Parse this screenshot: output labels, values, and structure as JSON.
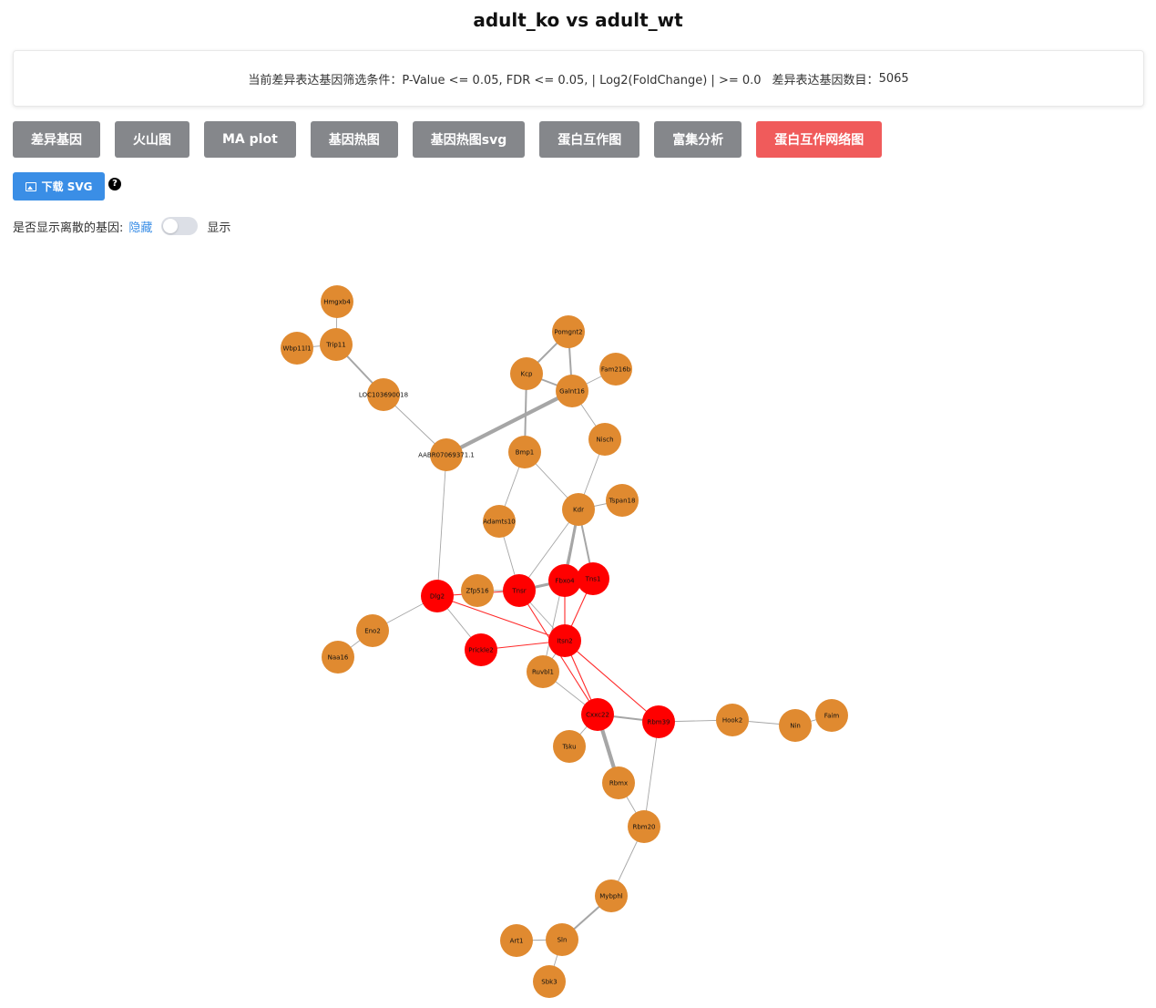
{
  "page_title": "adult_ko vs adult_wt",
  "filter": {
    "text": "当前差异表达基因筛选条件：P-Value <= 0.05, FDR <= 0.05, | Log2(FoldChange) | >= 0.0",
    "count_label": "差异表达基因数目：",
    "count_value": "5065"
  },
  "tabs": [
    {
      "label": "差异基因",
      "active": false
    },
    {
      "label": "火山图",
      "active": false
    },
    {
      "label": "MA plot",
      "active": false
    },
    {
      "label": "基因热图",
      "active": false
    },
    {
      "label": "基因热图svg",
      "active": false
    },
    {
      "label": "蛋白互作图",
      "active": false
    },
    {
      "label": "富集分析",
      "active": false
    },
    {
      "label": "蛋白互作网络图",
      "active": true
    }
  ],
  "download_label": "下载 SVG",
  "help_glyph": "?",
  "isolated_toggle": {
    "label": "是否显示离散的基因:",
    "off_label": "隐藏",
    "on_label": "显示",
    "value": false
  },
  "colors": {
    "up_node": "#ff0000",
    "normal_node": "#e08a30",
    "gray_edge": "#a6a6a6",
    "red_edge": "#ff2a2a",
    "active_tab": "#f05b5b",
    "tab": "#85878b",
    "download": "#3a8ee6"
  },
  "network": {
    "nodes": [
      {
        "id": "Hmgxb4",
        "label": "Hmgxb4",
        "group": "normal"
      },
      {
        "id": "Trip11",
        "label": "Trip11",
        "group": "normal"
      },
      {
        "id": "Wbp11l1",
        "label": "Wbp11l1",
        "group": "normal"
      },
      {
        "id": "LOC103690018",
        "label": "LOC103690018",
        "group": "normal"
      },
      {
        "id": "AABR07069371.1",
        "label": "AABR07069371.1",
        "group": "normal"
      },
      {
        "id": "Pomgnt2",
        "label": "Pomgnt2",
        "group": "normal"
      },
      {
        "id": "Kcp",
        "label": "Kcp",
        "group": "normal"
      },
      {
        "id": "Fam216b",
        "label": "Fam216b",
        "group": "normal"
      },
      {
        "id": "Galnt16",
        "label": "Galnt16",
        "group": "normal"
      },
      {
        "id": "Nisch",
        "label": "Nisch",
        "group": "normal"
      },
      {
        "id": "Bmp1",
        "label": "Bmp1",
        "group": "normal"
      },
      {
        "id": "Tspan18",
        "label": "Tspan18",
        "group": "normal"
      },
      {
        "id": "Kdr",
        "label": "Kdr",
        "group": "normal"
      },
      {
        "id": "Adamts10",
        "label": "Adamts10",
        "group": "normal"
      },
      {
        "id": "Dlg2",
        "label": "Dlg2",
        "group": "up"
      },
      {
        "id": "Zfp516",
        "label": "Zfp516",
        "group": "normal"
      },
      {
        "id": "Tnsr",
        "label": "Tnsr",
        "group": "up"
      },
      {
        "id": "Fbxo4",
        "label": "Fbxo4",
        "group": "up"
      },
      {
        "id": "Tns1",
        "label": "Tns1",
        "group": "up"
      },
      {
        "id": "Eno2",
        "label": "Eno2",
        "group": "normal"
      },
      {
        "id": "Naa16",
        "label": "Naa16",
        "group": "normal"
      },
      {
        "id": "Prickle2",
        "label": "Prickle2",
        "group": "up"
      },
      {
        "id": "Itsn2",
        "label": "Itsn2",
        "group": "up"
      },
      {
        "id": "Ruvbl1",
        "label": "Ruvbl1",
        "group": "normal"
      },
      {
        "id": "Cxxc22",
        "label": "Cxxc22",
        "group": "up"
      },
      {
        "id": "Rbm39",
        "label": "Rbm39",
        "group": "up"
      },
      {
        "id": "Hook2",
        "label": "Hook2",
        "group": "normal"
      },
      {
        "id": "Nin",
        "label": "Nin",
        "group": "normal"
      },
      {
        "id": "Faim",
        "label": "Faim",
        "group": "normal"
      },
      {
        "id": "Tsku",
        "label": "Tsku",
        "group": "normal"
      },
      {
        "id": "Rbmx",
        "label": "Rbmx",
        "group": "normal"
      },
      {
        "id": "Rbm20",
        "label": "Rbm20",
        "group": "normal"
      },
      {
        "id": "Mybphl",
        "label": "Mybphl",
        "group": "normal"
      },
      {
        "id": "Art1",
        "label": "Art1",
        "group": "normal"
      },
      {
        "id": "Sln",
        "label": "Sln",
        "group": "normal"
      },
      {
        "id": "Sbk3",
        "label": "Sbk3",
        "group": "normal"
      }
    ],
    "edges": [
      {
        "source": "Hmgxb4",
        "target": "Trip11",
        "type": "gray",
        "strength": 1
      },
      {
        "source": "Trip11",
        "target": "Wbp11l1",
        "type": "gray",
        "strength": 1
      },
      {
        "source": "Trip11",
        "target": "LOC103690018",
        "type": "gray",
        "strength": 2
      },
      {
        "source": "LOC103690018",
        "target": "AABR07069371.1",
        "type": "gray",
        "strength": 1
      },
      {
        "source": "AABR07069371.1",
        "target": "Galnt16",
        "type": "gray",
        "strength": 4
      },
      {
        "source": "AABR07069371.1",
        "target": "Dlg2",
        "type": "gray",
        "strength": 1
      },
      {
        "source": "Pomgnt2",
        "target": "Kcp",
        "type": "gray",
        "strength": 2
      },
      {
        "source": "Pomgnt2",
        "target": "Galnt16",
        "type": "gray",
        "strength": 2
      },
      {
        "source": "Kcp",
        "target": "Galnt16",
        "type": "gray",
        "strength": 2
      },
      {
        "source": "Kcp",
        "target": "Bmp1",
        "type": "gray",
        "strength": 2
      },
      {
        "source": "Fam216b",
        "target": "Galnt16",
        "type": "gray",
        "strength": 1
      },
      {
        "source": "Galnt16",
        "target": "Nisch",
        "type": "gray",
        "strength": 1
      },
      {
        "source": "Nisch",
        "target": "Kdr",
        "type": "gray",
        "strength": 1
      },
      {
        "source": "Bmp1",
        "target": "Adamts10",
        "type": "gray",
        "strength": 1
      },
      {
        "source": "Bmp1",
        "target": "Kdr",
        "type": "gray",
        "strength": 1
      },
      {
        "source": "Kdr",
        "target": "Tspan18",
        "type": "gray",
        "strength": 1
      },
      {
        "source": "Kdr",
        "target": "Fbxo4",
        "type": "gray",
        "strength": 3
      },
      {
        "source": "Kdr",
        "target": "Tns1",
        "type": "gray",
        "strength": 2
      },
      {
        "source": "Kdr",
        "target": "Tnsr",
        "type": "gray",
        "strength": 1
      },
      {
        "source": "Kdr",
        "target": "Ruvbl1",
        "type": "gray",
        "strength": 1
      },
      {
        "source": "Adamts10",
        "target": "Tnsr",
        "type": "gray",
        "strength": 1
      },
      {
        "source": "Zfp516",
        "target": "Tnsr",
        "type": "gray",
        "strength": 1
      },
      {
        "source": "Tnsr",
        "target": "Fbxo4",
        "type": "gray",
        "strength": 3
      },
      {
        "source": "Tnsr",
        "target": "Itsn2",
        "type": "gray",
        "strength": 1
      },
      {
        "source": "Dlg2",
        "target": "Eno2",
        "type": "gray",
        "strength": 1
      },
      {
        "source": "Eno2",
        "target": "Naa16",
        "type": "gray",
        "strength": 1
      },
      {
        "source": "Dlg2",
        "target": "Prickle2",
        "type": "gray",
        "strength": 1
      },
      {
        "source": "Dlg2",
        "target": "Itsn2",
        "type": "red",
        "strength": 1
      },
      {
        "source": "Dlg2",
        "target": "Tnsr",
        "type": "red",
        "strength": 1
      },
      {
        "source": "Tnsr",
        "target": "Cxxc22",
        "type": "red",
        "strength": 1
      },
      {
        "source": "Fbxo4",
        "target": "Itsn2",
        "type": "red",
        "strength": 1
      },
      {
        "source": "Tns1",
        "target": "Itsn2",
        "type": "red",
        "strength": 1
      },
      {
        "source": "Prickle2",
        "target": "Itsn2",
        "type": "red",
        "strength": 1
      },
      {
        "source": "Itsn2",
        "target": "Cxxc22",
        "type": "red",
        "strength": 1
      },
      {
        "source": "Itsn2",
        "target": "Rbm39",
        "type": "red",
        "strength": 1
      },
      {
        "source": "Itsn2",
        "target": "Ruvbl1",
        "type": "gray",
        "strength": 1
      },
      {
        "source": "Ruvbl1",
        "target": "Cxxc22",
        "type": "gray",
        "strength": 1
      },
      {
        "source": "Cxxc22",
        "target": "Rbm39",
        "type": "gray",
        "strength": 2
      },
      {
        "source": "Cxxc22",
        "target": "Tsku",
        "type": "gray",
        "strength": 1
      },
      {
        "source": "Cxxc22",
        "target": "Rbmx",
        "type": "gray",
        "strength": 4
      },
      {
        "source": "Rbm39",
        "target": "Hook2",
        "type": "gray",
        "strength": 1
      },
      {
        "source": "Rbm39",
        "target": "Rbm20",
        "type": "gray",
        "strength": 1
      },
      {
        "source": "Hook2",
        "target": "Nin",
        "type": "gray",
        "strength": 1
      },
      {
        "source": "Nin",
        "target": "Faim",
        "type": "gray",
        "strength": 1
      },
      {
        "source": "Rbmx",
        "target": "Rbm20",
        "type": "gray",
        "strength": 1
      },
      {
        "source": "Rbm20",
        "target": "Mybphl",
        "type": "gray",
        "strength": 1
      },
      {
        "source": "Mybphl",
        "target": "Sln",
        "type": "gray",
        "strength": 2
      },
      {
        "source": "Art1",
        "target": "Sln",
        "type": "gray",
        "strength": 1
      },
      {
        "source": "Sln",
        "target": "Sbk3",
        "type": "gray",
        "strength": 1
      }
    ]
  }
}
